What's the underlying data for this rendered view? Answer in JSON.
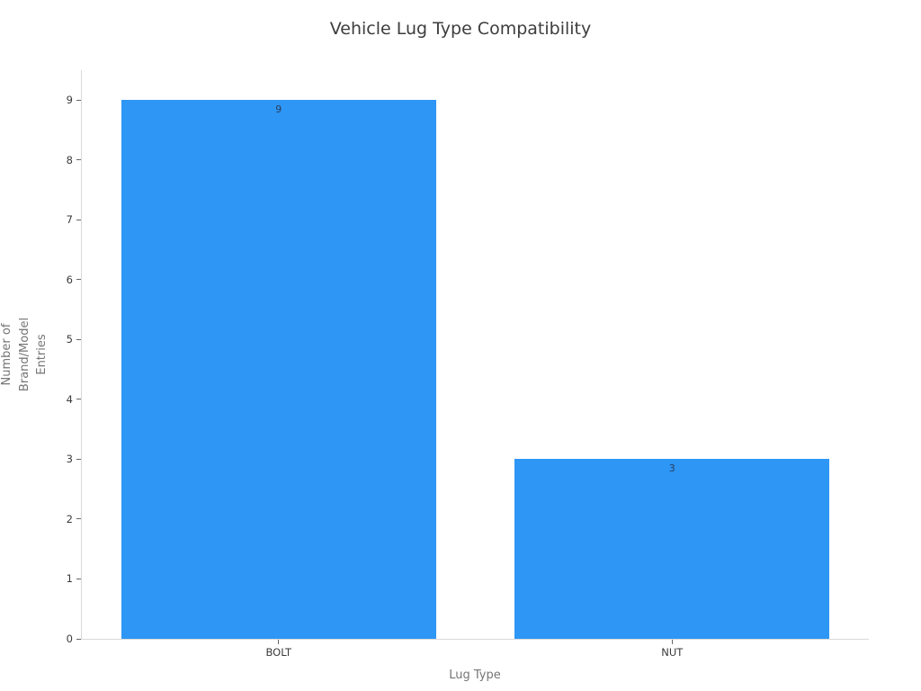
{
  "chart_data": {
    "type": "bar",
    "title": "Vehicle Lug Type Compatibility",
    "categories": [
      "BOLT",
      "NUT"
    ],
    "values": [
      9,
      3
    ],
    "bar_value_labels": [
      "9",
      "3"
    ],
    "xlabel": "Lug Type",
    "ylabel": "Number of Brand/Model Entries",
    "ylabel_lines": [
      "Number of",
      "Brand/Model",
      "Entries"
    ],
    "yticks": [
      0,
      1,
      2,
      3,
      4,
      5,
      6,
      7,
      8,
      9
    ],
    "ylim": [
      0,
      9.5
    ],
    "grid": "off",
    "legend": "none",
    "colors": {
      "bar_fill": "#2E96F5",
      "bar_value_label": "#2a3f5f",
      "axis_line": "#d9d9d9",
      "tick_mark": "#666666",
      "tick_label": "#3b3b3b",
      "axis_title": "#757575",
      "title": "#3d3d3d",
      "background": "#ffffff"
    }
  }
}
